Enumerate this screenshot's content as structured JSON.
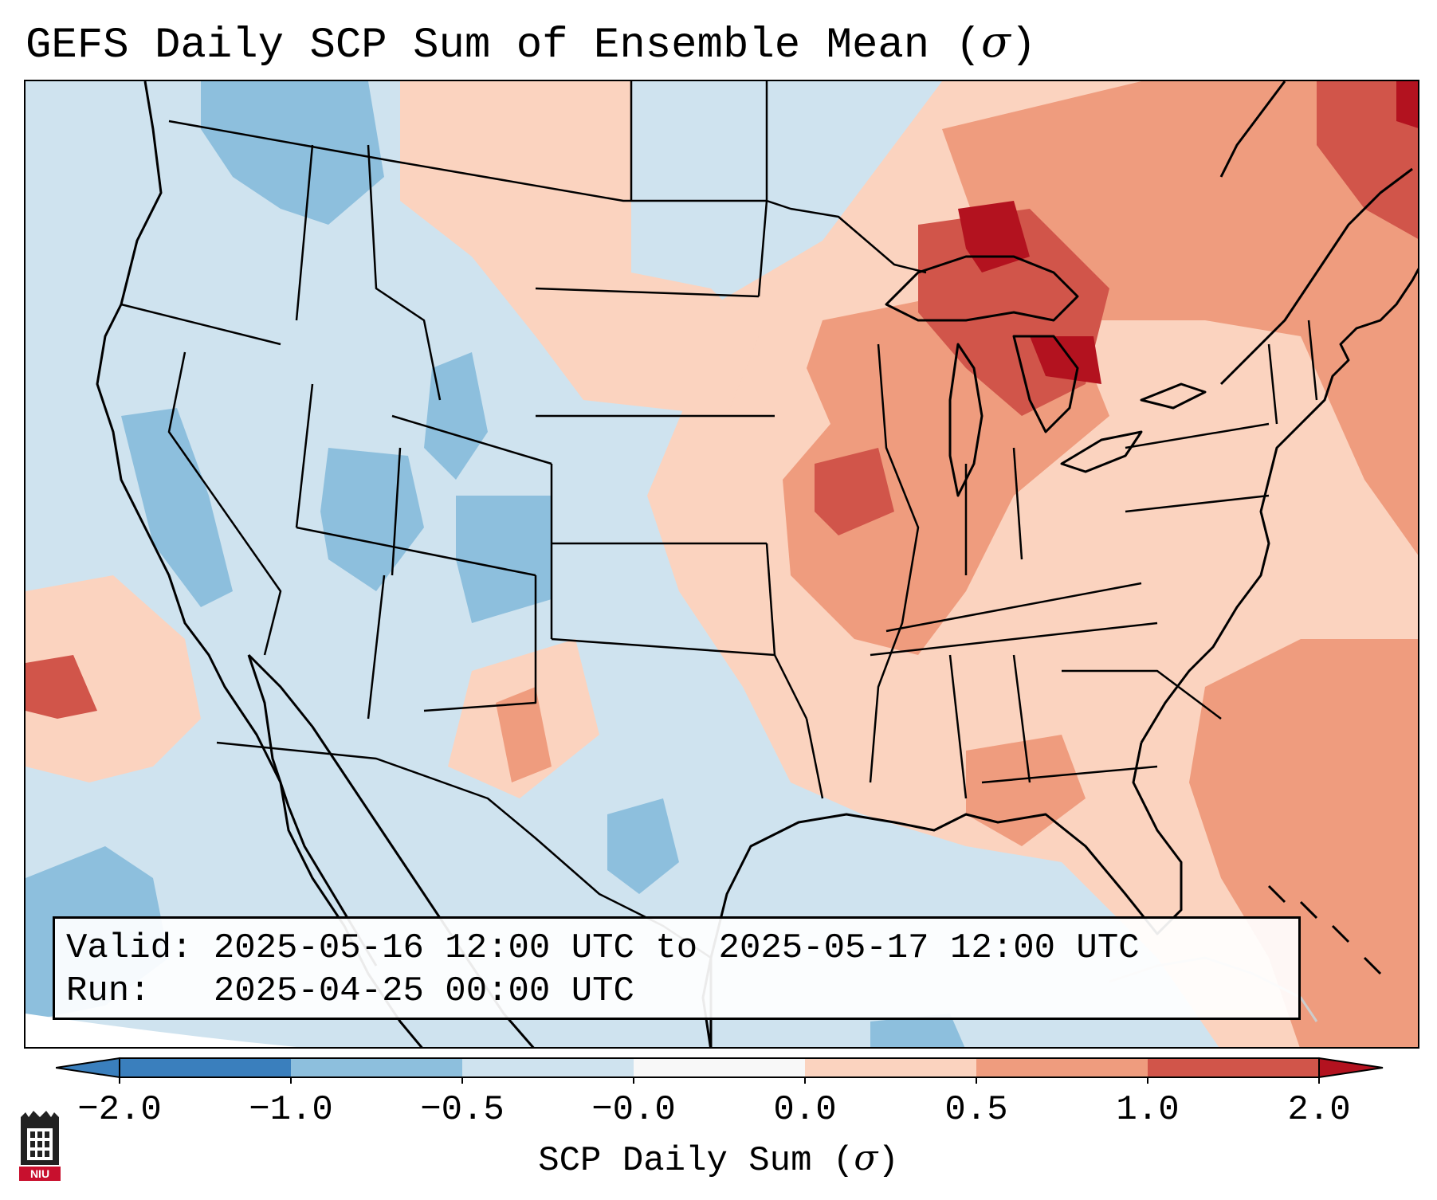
{
  "title": {
    "text": "GEFS Daily SCP Sum of Ensemble Mean (",
    "sigma": "σ",
    "close": ")"
  },
  "info": {
    "valid_label": "Valid:",
    "valid_value": "2025-05-16 12:00 UTC to 2025-05-17 12:00 UTC",
    "run_label": "Run:",
    "run_value": "2025-04-25 00:00 UTC"
  },
  "colorbar": {
    "label_text": "SCP Daily Sum (",
    "label_sigma": "σ",
    "label_close": ")",
    "ticks": [
      "−2.0",
      "−1.0",
      "−0.5",
      "−0.0",
      "0.0",
      "0.5",
      "1.0",
      "2.0"
    ],
    "colors": [
      "#3a7fbd",
      "#8dbfdd",
      "#cfe3ef",
      "#f8f8f8",
      "#fbd3bf",
      "#ef9c7e",
      "#d1554a",
      "#b3121f"
    ]
  },
  "map": {
    "background_color": "#cfe3ef",
    "ocean_fill_color": "#cfe3ef",
    "features": [
      "state-borders",
      "coastlines",
      "country-borders",
      "great-lakes"
    ]
  },
  "logo": {
    "icon": "niu-logo-icon",
    "text": "NIU"
  }
}
